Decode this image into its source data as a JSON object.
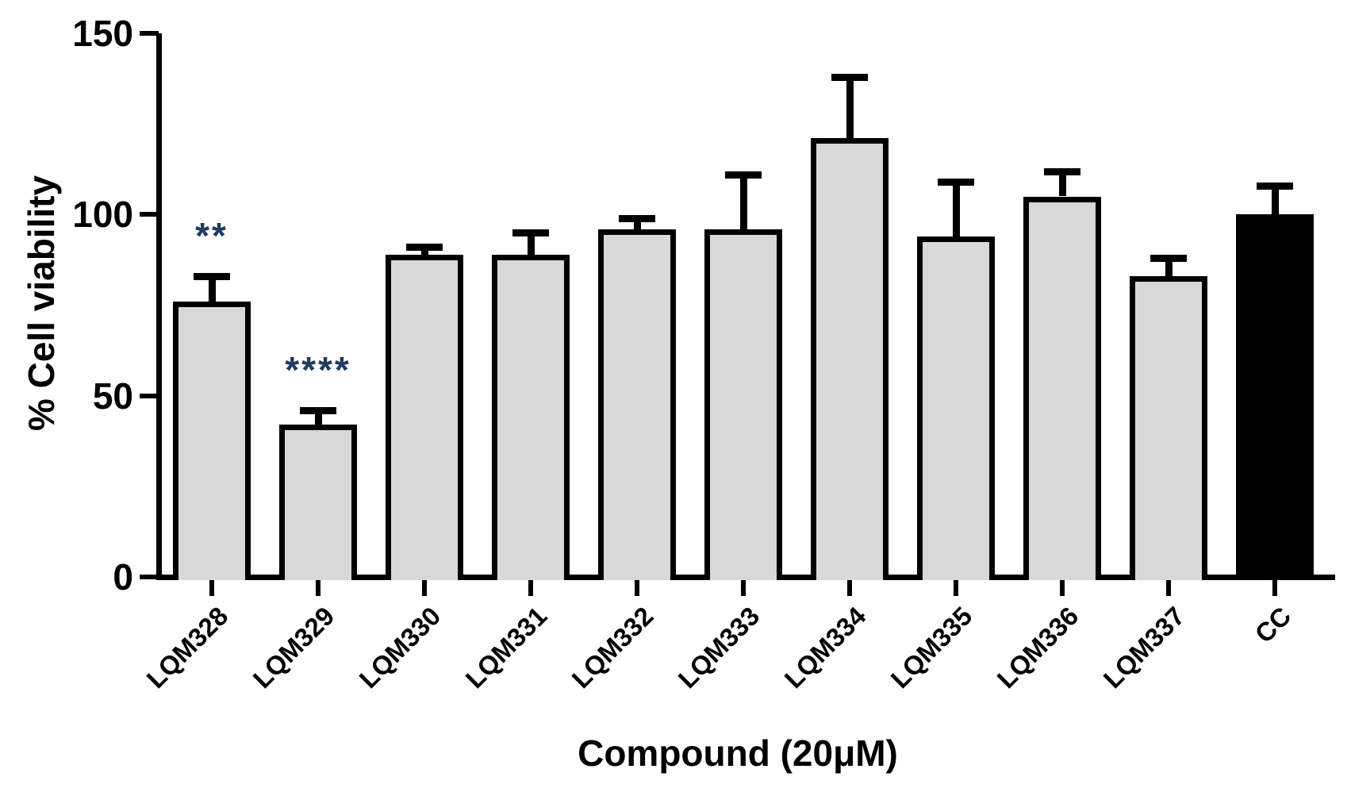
{
  "chart_data": {
    "type": "bar",
    "title": "",
    "xlabel": "Compound (20μM)",
    "ylabel": "% Cell viability",
    "categories": [
      "LQM328",
      "LQM329",
      "LQM330",
      "LQM331",
      "LQM332",
      "LQM333",
      "LQM334",
      "LQM335",
      "LQM336",
      "LQM337",
      "CC"
    ],
    "values": [
      76,
      42,
      89,
      89,
      96,
      96,
      121,
      94,
      105,
      83,
      100
    ],
    "errors_up": [
      7,
      4,
      2,
      6,
      3,
      15,
      17,
      15,
      7,
      5,
      8
    ],
    "bar_fills": [
      "#d8d8d8",
      "#d8d8d8",
      "#d8d8d8",
      "#d8d8d8",
      "#d8d8d8",
      "#d8d8d8",
      "#d8d8d8",
      "#d8d8d8",
      "#d8d8d8",
      "#d8d8d8",
      "#000000"
    ],
    "ylim": [
      0,
      150
    ],
    "yticks": [
      0,
      50,
      100,
      150
    ],
    "grid": false,
    "legend": "none",
    "error_bars": "upper-only",
    "significance": [
      {
        "category": "LQM328",
        "label": "**"
      },
      {
        "category": "LQM329",
        "label": "****"
      }
    ],
    "colors": {
      "bar_stroke": "#000000",
      "axis": "#000000",
      "significance_text": "#1f3a5f",
      "background": "#ffffff"
    }
  }
}
